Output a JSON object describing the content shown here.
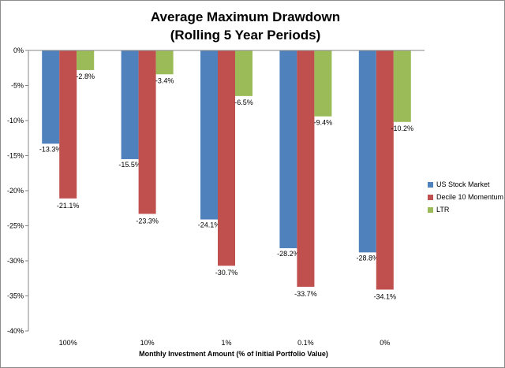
{
  "chart_data": {
    "type": "bar",
    "title_line1": "Average Maximum Drawdown",
    "title_line2": "(Rolling 5 Year Periods)",
    "xlabel": "Monthly Investment Amount (% of Initial Portfolio Value)",
    "ylabel": "",
    "categories": [
      "100%",
      "10%",
      "1%",
      "0.1%",
      "0%"
    ],
    "ylim": [
      -40,
      0
    ],
    "yticks": [
      0,
      -5,
      -10,
      -15,
      -20,
      -25,
      -30,
      -35,
      -40
    ],
    "ytick_labels": [
      "0%",
      "-5%",
      "-10%",
      "-15%",
      "-20%",
      "-25%",
      "-30%",
      "-35%",
      "-40%"
    ],
    "grid": false,
    "legend_position": "right",
    "series": [
      {
        "name": "US Stock Market",
        "color": "#4f81bd",
        "values": [
          -13.3,
          -15.5,
          -24.1,
          -28.2,
          -28.8
        ],
        "labels": [
          "-13.3%",
          "-15.5%",
          "-24.1%",
          "-28.2%",
          "-28.8%"
        ]
      },
      {
        "name": "Decile 10 Momentum",
        "color": "#c0504d",
        "values": [
          -21.1,
          -23.3,
          -30.7,
          -33.7,
          -34.1
        ],
        "labels": [
          "-21.1%",
          "-23.3%",
          "-30.7%",
          "-33.7%",
          "-34.1%"
        ]
      },
      {
        "name": "LTR",
        "color": "#9bbb59",
        "values": [
          -2.8,
          -3.4,
          -6.5,
          -9.4,
          -10.2
        ],
        "labels": [
          "-2.8%",
          "-3.4%",
          "-6.5%",
          "-9.4%",
          "-10.2%"
        ]
      }
    ]
  }
}
